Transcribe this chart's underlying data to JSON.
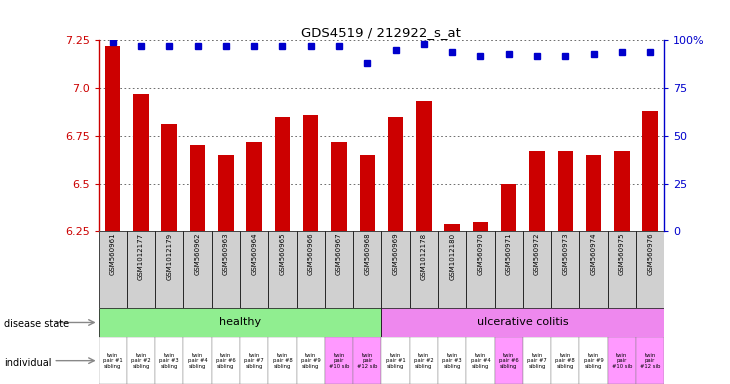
{
  "title": "GDS4519 / 212922_s_at",
  "samples": [
    "GSM560961",
    "GSM1012177",
    "GSM1012179",
    "GSM560962",
    "GSM560963",
    "GSM560964",
    "GSM560965",
    "GSM560966",
    "GSM560967",
    "GSM560968",
    "GSM560969",
    "GSM1012178",
    "GSM1012180",
    "GSM560970",
    "GSM560971",
    "GSM560972",
    "GSM560973",
    "GSM560974",
    "GSM560975",
    "GSM560976"
  ],
  "bar_values": [
    7.22,
    6.97,
    6.81,
    6.7,
    6.65,
    6.72,
    6.85,
    6.86,
    6.72,
    6.65,
    6.85,
    6.93,
    6.29,
    6.3,
    6.5,
    6.67,
    6.67,
    6.65,
    6.67,
    6.88
  ],
  "percentile_values": [
    99,
    97,
    97,
    97,
    97,
    97,
    97,
    97,
    97,
    88,
    95,
    98,
    94,
    92,
    93,
    92,
    92,
    93,
    94,
    94
  ],
  "disease_state": [
    "healthy",
    "healthy",
    "healthy",
    "healthy",
    "healthy",
    "healthy",
    "healthy",
    "healthy",
    "healthy",
    "healthy",
    "ulcerative colitis",
    "ulcerative colitis",
    "ulcerative colitis",
    "ulcerative colitis",
    "ulcerative colitis",
    "ulcerative colitis",
    "ulcerative colitis",
    "ulcerative colitis",
    "ulcerative colitis",
    "ulcerative colitis"
  ],
  "individual_labels": [
    "twin\npair #1\nsibling",
    "twin\npair #2\nsibling",
    "twin\npair #3\nsibling",
    "twin\npair #4\nsibling",
    "twin\npair #6\nsibling",
    "twin\npair #7\nsibling",
    "twin\npair #8\nsibling",
    "twin\npair #9\nsibling",
    "twin\npair\n#10 sib",
    "twin\npair\n#12 sib",
    "twin\npair #1\nsibling",
    "twin\npair #2\nsibling",
    "twin\npair #3\nsibling",
    "twin\npair #4\nsibling",
    "twin\npair #6\nsibling",
    "twin\npair #7\nsibling",
    "twin\npair #8\nsibling",
    "twin\npair #9\nsibling",
    "twin\npair\n#10 sib",
    "twin\npair\n#12 sib"
  ],
  "indiv_bg": [
    "white",
    "white",
    "white",
    "white",
    "white",
    "white",
    "white",
    "white",
    "#ff99ff",
    "#ff99ff",
    "white",
    "white",
    "white",
    "white",
    "#ff99ff",
    "white",
    "white",
    "white",
    "#ff99ff",
    "#ff99ff"
  ],
  "ylim": [
    6.25,
    7.25
  ],
  "yticks": [
    6.25,
    6.5,
    6.75,
    7.0,
    7.25
  ],
  "right_ylim": [
    0,
    100
  ],
  "right_yticks": [
    0,
    25,
    50,
    75,
    100
  ],
  "bar_color": "#cc0000",
  "dot_color": "#0000cc",
  "healthy_color": "#90ee90",
  "uc_color": "#ee88ee",
  "xtick_bg": "#d0d0d0",
  "grid_color": "#555555",
  "n_healthy": 10
}
